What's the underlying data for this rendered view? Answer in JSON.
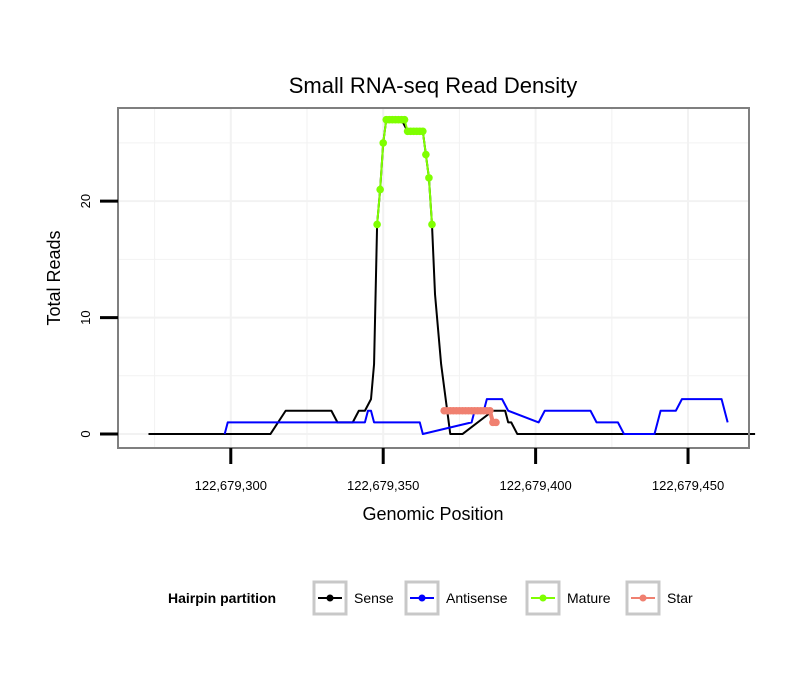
{
  "chart_data": {
    "type": "line",
    "title": "Small RNA-seq Read Density",
    "xlabel": "Genomic Position",
    "ylabel": "Total Reads",
    "xlim": [
      122679263,
      122679470
    ],
    "ylim": [
      -1.2,
      28
    ],
    "x_ticks": [
      {
        "value": 122679300,
        "label": "122,679,300"
      },
      {
        "value": 122679350,
        "label": "122,679,350"
      },
      {
        "value": 122679400,
        "label": "122,679,400"
      },
      {
        "value": 122679450,
        "label": "122,679,450"
      }
    ],
    "y_ticks": [
      {
        "value": 0,
        "label": "0"
      },
      {
        "value": 10,
        "label": "10"
      },
      {
        "value": 20,
        "label": "20"
      }
    ],
    "grid": true,
    "legend": {
      "title": "Hairpin partition",
      "position": "bottom",
      "items": [
        {
          "label": "Sense",
          "color": "#000000"
        },
        {
          "label": "Antisense",
          "color": "#0000ff"
        },
        {
          "label": "Mature",
          "color": "#7fff00"
        },
        {
          "label": "Star",
          "color": "#f08070"
        }
      ]
    },
    "series": [
      {
        "name": "Sense",
        "color": "#000000",
        "x": [
          122679273,
          122679313,
          122679318,
          122679320,
          122679333,
          122679335,
          122679340,
          122679342,
          122679344,
          122679346,
          122679347,
          122679348,
          122679349,
          122679350,
          122679351,
          122679352,
          122679353,
          122679356,
          122679358,
          122679359,
          122679361,
          122679362,
          122679363,
          122679364,
          122679365,
          122679366,
          122679367,
          122679368,
          122679369,
          122679370,
          122679372,
          122679374,
          122679376,
          122679386,
          122679388,
          122679390,
          122679391,
          122679392,
          122679394,
          122679472
        ],
        "y": [
          0,
          0,
          2,
          2,
          2,
          1,
          1,
          2,
          2,
          3,
          6,
          18,
          21,
          25,
          27,
          27,
          27,
          27,
          26,
          26,
          26,
          26,
          26,
          24,
          22,
          18,
          12,
          9,
          6,
          4,
          0,
          0,
          0,
          2,
          2,
          2,
          1,
          1,
          0,
          0
        ]
      },
      {
        "name": "Antisense",
        "color": "#0000ff",
        "x": [
          122679298,
          122679299,
          122679309,
          122679310,
          122679311,
          122679313,
          122679318,
          122679319,
          122679344,
          122679345,
          122679346,
          122679347,
          122679360,
          122679361,
          122679362,
          122679363,
          122679379,
          122679380,
          122679383,
          122679384,
          122679389,
          122679391,
          122679401,
          122679403,
          122679418,
          122679420,
          122679427,
          122679429,
          122679439,
          122679441,
          122679446,
          122679448,
          122679461,
          122679463
        ],
        "y": [
          0,
          1,
          1,
          1,
          1,
          1,
          1,
          1,
          1,
          2,
          2,
          1,
          1,
          1,
          1,
          0,
          1,
          2,
          2,
          3,
          3,
          2,
          1,
          2,
          2,
          1,
          1,
          0,
          0,
          2,
          2,
          3,
          3,
          1
        ]
      },
      {
        "name": "Mature",
        "color": "#7fff00",
        "x": [
          122679348,
          122679349,
          122679350,
          122679351,
          122679352,
          122679353,
          122679354,
          122679355,
          122679356,
          122679357,
          122679358,
          122679359,
          122679360,
          122679361,
          122679362,
          122679363,
          122679364,
          122679365,
          122679366
        ],
        "y": [
          18,
          21,
          25,
          27,
          27,
          27,
          27,
          27,
          27,
          27,
          26,
          26,
          26,
          26,
          26,
          26,
          24,
          22,
          18
        ]
      },
      {
        "name": "Star",
        "color": "#f08070",
        "x": [
          122679370,
          122679371,
          122679372,
          122679373,
          122679374,
          122679375,
          122679376,
          122679377,
          122679378,
          122679379,
          122679380,
          122679381,
          122679382,
          122679383,
          122679384,
          122679385,
          122679386,
          122679387
        ],
        "y": [
          2,
          2,
          2,
          2,
          2,
          2,
          2,
          2,
          2,
          2,
          2,
          2,
          2,
          2,
          2,
          2,
          1,
          1
        ]
      }
    ]
  }
}
